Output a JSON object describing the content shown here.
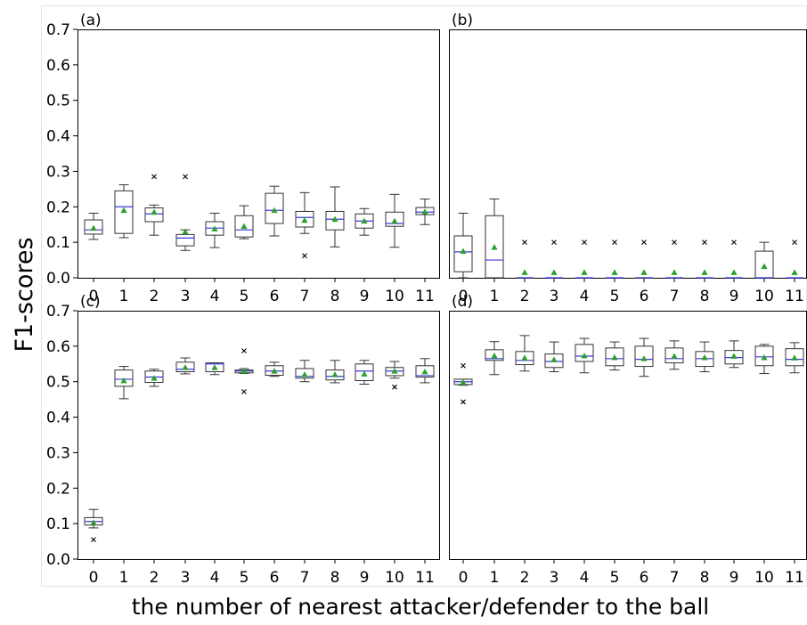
{
  "figure": {
    "ylabel": "F1-scores",
    "xlabel": "the number of nearest attacker/defender to the ball"
  },
  "colors": {
    "box": "#333333",
    "median": "#3b3bd6",
    "mean_marker": "#2ca02c",
    "outlier": "#000000"
  },
  "chart_data": [
    {
      "type": "box",
      "panel_label": "(a)",
      "categories": [
        "0",
        "1",
        "2",
        "3",
        "4",
        "5",
        "6",
        "7",
        "8",
        "9",
        "10",
        "11"
      ],
      "ylim": [
        0,
        0.7
      ],
      "yticks": [
        "0.0",
        "0.1",
        "0.2",
        "0.3",
        "0.4",
        "0.5",
        "0.6",
        "0.7"
      ],
      "boxes": [
        {
          "wlo": 0.108,
          "q1": 0.123,
          "med": 0.135,
          "q3": 0.163,
          "whi": 0.182,
          "mean": 0.14,
          "out": []
        },
        {
          "wlo": 0.113,
          "q1": 0.125,
          "med": 0.2,
          "q3": 0.245,
          "whi": 0.262,
          "mean": 0.19,
          "out": []
        },
        {
          "wlo": 0.12,
          "q1": 0.158,
          "med": 0.18,
          "q3": 0.197,
          "whi": 0.205,
          "mean": 0.185,
          "out": [
            0.285
          ]
        },
        {
          "wlo": 0.077,
          "q1": 0.09,
          "med": 0.112,
          "q3": 0.122,
          "whi": 0.135,
          "mean": 0.13,
          "out": [
            0.285
          ]
        },
        {
          "wlo": 0.085,
          "q1": 0.12,
          "med": 0.14,
          "q3": 0.158,
          "whi": 0.182,
          "mean": 0.138,
          "out": []
        },
        {
          "wlo": 0.11,
          "q1": 0.115,
          "med": 0.135,
          "q3": 0.175,
          "whi": 0.203,
          "mean": 0.145,
          "out": []
        },
        {
          "wlo": 0.118,
          "q1": 0.153,
          "med": 0.19,
          "q3": 0.238,
          "whi": 0.258,
          "mean": 0.19,
          "out": []
        },
        {
          "wlo": 0.125,
          "q1": 0.143,
          "med": 0.17,
          "q3": 0.187,
          "whi": 0.24,
          "mean": 0.162,
          "out": [
            0.062
          ]
        },
        {
          "wlo": 0.087,
          "q1": 0.135,
          "med": 0.165,
          "q3": 0.187,
          "whi": 0.256,
          "mean": 0.165,
          "out": []
        },
        {
          "wlo": 0.12,
          "q1": 0.14,
          "med": 0.16,
          "q3": 0.18,
          "whi": 0.195,
          "mean": 0.16,
          "out": []
        },
        {
          "wlo": 0.086,
          "q1": 0.145,
          "med": 0.153,
          "q3": 0.185,
          "whi": 0.235,
          "mean": 0.16,
          "out": []
        },
        {
          "wlo": 0.15,
          "q1": 0.178,
          "med": 0.185,
          "q3": 0.198,
          "whi": 0.222,
          "mean": 0.186,
          "out": []
        }
      ]
    },
    {
      "type": "box",
      "panel_label": "(b)",
      "categories": [
        "0",
        "1",
        "2",
        "3",
        "4",
        "5",
        "6",
        "7",
        "8",
        "9",
        "10",
        "11"
      ],
      "ylim": [
        0,
        0.7
      ],
      "yticks": [],
      "boxes": [
        {
          "wlo": 0.0,
          "q1": 0.017,
          "med": 0.073,
          "q3": 0.118,
          "whi": 0.182,
          "mean": 0.075,
          "out": []
        },
        {
          "wlo": 0.0,
          "q1": 0.0,
          "med": 0.05,
          "q3": 0.175,
          "whi": 0.222,
          "mean": 0.086,
          "out": []
        },
        {
          "wlo": 0.0,
          "q1": 0.0,
          "med": 0.0,
          "q3": 0.0,
          "whi": 0.0,
          "mean": 0.015,
          "out": [
            0.1
          ]
        },
        {
          "wlo": 0.0,
          "q1": 0.0,
          "med": 0.0,
          "q3": 0.0,
          "whi": 0.0,
          "mean": 0.015,
          "out": [
            0.1
          ]
        },
        {
          "wlo": 0.0,
          "q1": 0.0,
          "med": 0.0,
          "q3": 0.0,
          "whi": 0.0,
          "mean": 0.015,
          "out": [
            0.1
          ]
        },
        {
          "wlo": 0.0,
          "q1": 0.0,
          "med": 0.0,
          "q3": 0.0,
          "whi": 0.0,
          "mean": 0.015,
          "out": [
            0.1
          ]
        },
        {
          "wlo": 0.0,
          "q1": 0.0,
          "med": 0.0,
          "q3": 0.0,
          "whi": 0.0,
          "mean": 0.015,
          "out": [
            0.1
          ]
        },
        {
          "wlo": 0.0,
          "q1": 0.0,
          "med": 0.0,
          "q3": 0.0,
          "whi": 0.0,
          "mean": 0.015,
          "out": [
            0.1
          ]
        },
        {
          "wlo": 0.0,
          "q1": 0.0,
          "med": 0.0,
          "q3": 0.0,
          "whi": 0.0,
          "mean": 0.015,
          "out": [
            0.1
          ]
        },
        {
          "wlo": 0.0,
          "q1": 0.0,
          "med": 0.0,
          "q3": 0.0,
          "whi": 0.0,
          "mean": 0.015,
          "out": [
            0.1
          ]
        },
        {
          "wlo": 0.0,
          "q1": 0.0,
          "med": 0.0,
          "q3": 0.075,
          "whi": 0.1,
          "mean": 0.032,
          "out": []
        },
        {
          "wlo": 0.0,
          "q1": 0.0,
          "med": 0.0,
          "q3": 0.0,
          "whi": 0.0,
          "mean": 0.015,
          "out": [
            0.1
          ]
        }
      ]
    },
    {
      "type": "box",
      "panel_label": "(c)",
      "categories": [
        "0",
        "1",
        "2",
        "3",
        "4",
        "5",
        "6",
        "7",
        "8",
        "9",
        "10",
        "11"
      ],
      "ylim": [
        0,
        0.7
      ],
      "yticks": [
        "0.0",
        "0.1",
        "0.2",
        "0.3",
        "0.4",
        "0.5",
        "0.6",
        "0.7"
      ],
      "boxes": [
        {
          "wlo": 0.088,
          "q1": 0.096,
          "med": 0.106,
          "q3": 0.117,
          "whi": 0.14,
          "mean": 0.103,
          "out": [
            0.055
          ]
        },
        {
          "wlo": 0.452,
          "q1": 0.487,
          "med": 0.507,
          "q3": 0.533,
          "whi": 0.543,
          "mean": 0.503,
          "out": []
        },
        {
          "wlo": 0.487,
          "q1": 0.498,
          "med": 0.513,
          "q3": 0.53,
          "whi": 0.535,
          "mean": 0.51,
          "out": []
        },
        {
          "wlo": 0.522,
          "q1": 0.528,
          "med": 0.535,
          "q3": 0.555,
          "whi": 0.567,
          "mean": 0.54,
          "out": []
        },
        {
          "wlo": 0.52,
          "q1": 0.528,
          "med": 0.55,
          "q3": 0.553,
          "whi": 0.553,
          "mean": 0.54,
          "out": []
        },
        {
          "wlo": 0.523,
          "q1": 0.525,
          "med": 0.53,
          "q3": 0.533,
          "whi": 0.537,
          "mean": 0.53,
          "out": [
            0.472,
            0.587
          ]
        },
        {
          "wlo": 0.515,
          "q1": 0.518,
          "med": 0.53,
          "q3": 0.545,
          "whi": 0.555,
          "mean": 0.53,
          "out": []
        },
        {
          "wlo": 0.5,
          "q1": 0.51,
          "med": 0.515,
          "q3": 0.537,
          "whi": 0.56,
          "mean": 0.52,
          "out": []
        },
        {
          "wlo": 0.497,
          "q1": 0.505,
          "med": 0.515,
          "q3": 0.533,
          "whi": 0.56,
          "mean": 0.52,
          "out": []
        },
        {
          "wlo": 0.493,
          "q1": 0.503,
          "med": 0.53,
          "q3": 0.55,
          "whi": 0.56,
          "mean": 0.522,
          "out": []
        },
        {
          "wlo": 0.51,
          "q1": 0.517,
          "med": 0.53,
          "q3": 0.54,
          "whi": 0.557,
          "mean": 0.53,
          "out": [
            0.485
          ]
        },
        {
          "wlo": 0.497,
          "q1": 0.513,
          "med": 0.517,
          "q3": 0.545,
          "whi": 0.565,
          "mean": 0.528,
          "out": []
        }
      ]
    },
    {
      "type": "box",
      "panel_label": "(d)",
      "categories": [
        "0",
        "1",
        "2",
        "3",
        "4",
        "5",
        "6",
        "7",
        "8",
        "9",
        "10",
        "11"
      ],
      "ylim": [
        0,
        0.7
      ],
      "yticks": [],
      "boxes": [
        {
          "wlo": 0.49,
          "q1": 0.492,
          "med": 0.5,
          "q3": 0.507,
          "whi": 0.507,
          "mean": 0.498,
          "out": [
            0.443,
            0.545
          ]
        },
        {
          "wlo": 0.52,
          "q1": 0.56,
          "med": 0.565,
          "q3": 0.59,
          "whi": 0.613,
          "mean": 0.573,
          "out": []
        },
        {
          "wlo": 0.53,
          "q1": 0.548,
          "med": 0.56,
          "q3": 0.585,
          "whi": 0.63,
          "mean": 0.567,
          "out": []
        },
        {
          "wlo": 0.528,
          "q1": 0.54,
          "med": 0.557,
          "q3": 0.578,
          "whi": 0.612,
          "mean": 0.562,
          "out": []
        },
        {
          "wlo": 0.525,
          "q1": 0.557,
          "med": 0.572,
          "q3": 0.605,
          "whi": 0.622,
          "mean": 0.573,
          "out": []
        },
        {
          "wlo": 0.533,
          "q1": 0.545,
          "med": 0.565,
          "q3": 0.595,
          "whi": 0.612,
          "mean": 0.568,
          "out": []
        },
        {
          "wlo": 0.515,
          "q1": 0.543,
          "med": 0.563,
          "q3": 0.6,
          "whi": 0.622,
          "mean": 0.565,
          "out": []
        },
        {
          "wlo": 0.535,
          "q1": 0.553,
          "med": 0.565,
          "q3": 0.595,
          "whi": 0.615,
          "mean": 0.572,
          "out": []
        },
        {
          "wlo": 0.528,
          "q1": 0.543,
          "med": 0.565,
          "q3": 0.585,
          "whi": 0.612,
          "mean": 0.568,
          "out": []
        },
        {
          "wlo": 0.54,
          "q1": 0.55,
          "med": 0.568,
          "q3": 0.588,
          "whi": 0.615,
          "mean": 0.572,
          "out": []
        },
        {
          "wlo": 0.523,
          "q1": 0.545,
          "med": 0.57,
          "q3": 0.6,
          "whi": 0.605,
          "mean": 0.568,
          "out": []
        },
        {
          "wlo": 0.525,
          "q1": 0.545,
          "med": 0.563,
          "q3": 0.593,
          "whi": 0.61,
          "mean": 0.567,
          "out": []
        }
      ]
    }
  ]
}
